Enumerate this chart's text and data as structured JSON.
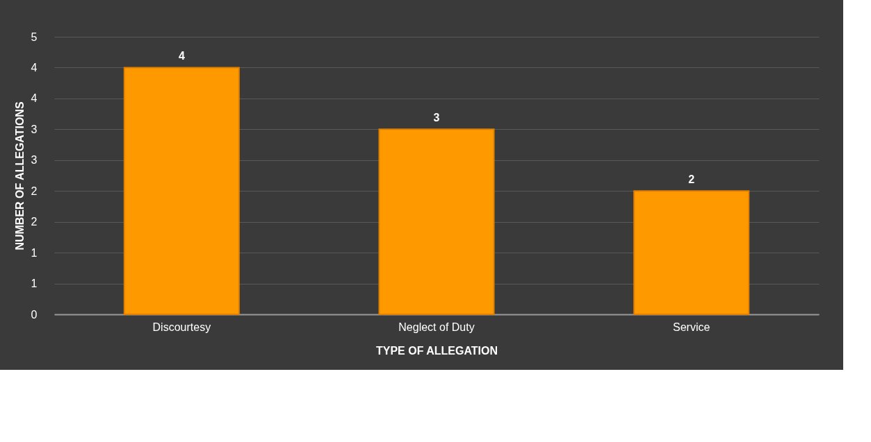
{
  "chart_data": {
    "type": "bar",
    "xlabel": "TYPE OF ALLEGATION",
    "ylabel": "NUMBER OF ALLEGATIONS",
    "categories": [
      "Discourtesy",
      "Neglect of Duty",
      "Service"
    ],
    "values": [
      4,
      3,
      2
    ],
    "color": "#ff9900",
    "data_labels": true,
    "ylim": [
      0,
      4.5
    ],
    "yticks": [
      0,
      {
        "value": 0.5,
        "label": "1"
      },
      1,
      {
        "value": 1.5,
        "label": "2"
      },
      2,
      {
        "value": 2.5,
        "label": "3"
      },
      3,
      {
        "value": 3.5,
        "label": "4"
      },
      4,
      {
        "value": 4.5,
        "label": "5"
      }
    ],
    "grid": "y"
  }
}
